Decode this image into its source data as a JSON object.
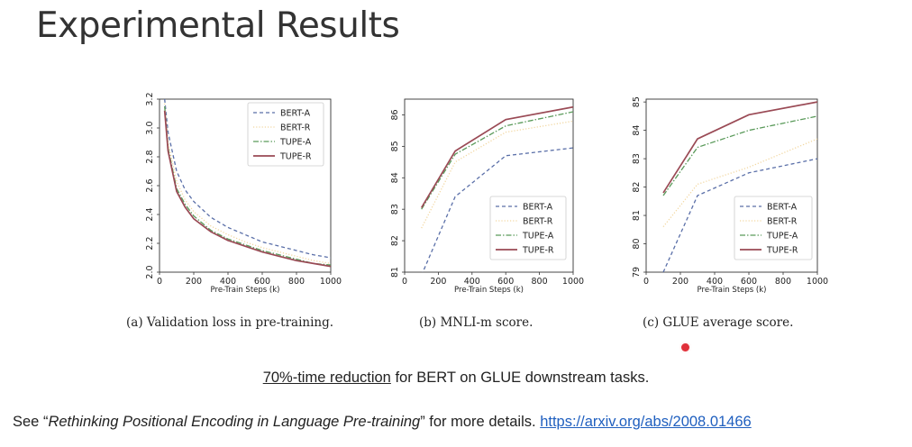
{
  "slide": {
    "title": "Experimental Results",
    "summary_highlight": "70%-time reduction",
    "summary_rest": " for  BERT on GLUE downstream tasks.",
    "footnote_prefix": "See “",
    "footnote_paper": "Rethinking Positional Encoding in Language Pre-training",
    "footnote_mid": "” for more details. ",
    "footnote_link": "https://arxiv.org/abs/2008.01466"
  },
  "colors": {
    "BERT-A": "#5a6fa8",
    "BERT-R": "#f2d7a0",
    "TUPE-A": "#5a9a5a",
    "TUPE-R": "#9a4a55"
  },
  "chart_data": [
    {
      "type": "line",
      "caption": "(a) Validation loss in pre-training.",
      "xlabel": "Pre-Train Steps (k)",
      "xlim": [
        0,
        1000
      ],
      "ylim": [
        2.0,
        3.2
      ],
      "xticks": [
        0,
        200,
        400,
        600,
        800,
        1000
      ],
      "yticks": [
        2.0,
        2.2,
        2.4,
        2.6,
        2.8,
        3.0,
        3.2
      ],
      "legend_position": "top-right",
      "series": [
        {
          "name": "BERT-A",
          "style": "dashed",
          "x": [
            30,
            50,
            100,
            150,
            200,
            300,
            400,
            500,
            600,
            700,
            800,
            900,
            1000
          ],
          "y": [
            3.2,
            2.97,
            2.7,
            2.57,
            2.49,
            2.38,
            2.31,
            2.26,
            2.21,
            2.18,
            2.15,
            2.12,
            2.1
          ]
        },
        {
          "name": "BERT-R",
          "style": "dotted",
          "x": [
            30,
            50,
            100,
            150,
            200,
            300,
            400,
            500,
            600,
            700,
            800,
            900,
            1000
          ],
          "y": [
            3.17,
            2.9,
            2.63,
            2.5,
            2.42,
            2.32,
            2.26,
            2.21,
            2.17,
            2.14,
            2.11,
            2.08,
            2.06
          ]
        },
        {
          "name": "TUPE-A",
          "style": "dashdot",
          "x": [
            30,
            50,
            100,
            150,
            200,
            300,
            400,
            500,
            600,
            700,
            800,
            900,
            1000
          ],
          "y": [
            3.15,
            2.86,
            2.58,
            2.47,
            2.39,
            2.29,
            2.23,
            2.19,
            2.15,
            2.12,
            2.09,
            2.06,
            2.05
          ]
        },
        {
          "name": "TUPE-R",
          "style": "solid",
          "x": [
            30,
            50,
            100,
            150,
            200,
            300,
            400,
            500,
            600,
            700,
            800,
            900,
            1000
          ],
          "y": [
            3.12,
            2.84,
            2.56,
            2.45,
            2.37,
            2.28,
            2.22,
            2.18,
            2.14,
            2.11,
            2.08,
            2.06,
            2.04
          ]
        }
      ]
    },
    {
      "type": "line",
      "caption": "(b) MNLI-m score.",
      "xlabel": "Pre-Train Steps (k)",
      "xlim": [
        0,
        1000
      ],
      "ylim": [
        81,
        86.5
      ],
      "xticks": [
        0,
        200,
        400,
        600,
        800,
        1000
      ],
      "yticks": [
        81,
        82,
        83,
        84,
        85,
        86
      ],
      "legend_position": "bottom-right",
      "series": [
        {
          "name": "BERT-A",
          "style": "dashed",
          "x": [
            100,
            300,
            600,
            1000
          ],
          "y": [
            80.9,
            83.4,
            84.7,
            84.95
          ]
        },
        {
          "name": "BERT-R",
          "style": "dotted",
          "x": [
            100,
            300,
            600,
            1000
          ],
          "y": [
            82.4,
            84.5,
            85.45,
            85.8
          ]
        },
        {
          "name": "TUPE-A",
          "style": "dashdot",
          "x": [
            100,
            300,
            600,
            1000
          ],
          "y": [
            83.0,
            84.75,
            85.65,
            86.1
          ]
        },
        {
          "name": "TUPE-R",
          "style": "solid",
          "x": [
            100,
            300,
            600,
            1000
          ],
          "y": [
            83.05,
            84.85,
            85.85,
            86.25
          ]
        }
      ]
    },
    {
      "type": "line",
      "caption": "(c) GLUE average score.",
      "xlabel": "Pre-Train Steps (k)",
      "xlim": [
        0,
        1000
      ],
      "ylim": [
        79,
        85.1
      ],
      "xticks": [
        0,
        200,
        400,
        600,
        800,
        1000
      ],
      "yticks": [
        79,
        80,
        81,
        82,
        83,
        84,
        85
      ],
      "legend_position": "bottom-right",
      "series": [
        {
          "name": "BERT-A",
          "style": "dashed",
          "x": [
            100,
            300,
            600,
            1000
          ],
          "y": [
            79.0,
            81.7,
            82.5,
            83.0
          ]
        },
        {
          "name": "BERT-R",
          "style": "dotted",
          "x": [
            100,
            300,
            600,
            1000
          ],
          "y": [
            80.6,
            82.1,
            82.7,
            83.7
          ]
        },
        {
          "name": "TUPE-A",
          "style": "dashdot",
          "x": [
            100,
            300,
            600,
            1000
          ],
          "y": [
            81.7,
            83.4,
            84.0,
            84.5
          ]
        },
        {
          "name": "TUPE-R",
          "style": "solid",
          "x": [
            100,
            300,
            600,
            1000
          ],
          "y": [
            81.8,
            83.7,
            84.55,
            85.0
          ]
        }
      ]
    }
  ]
}
